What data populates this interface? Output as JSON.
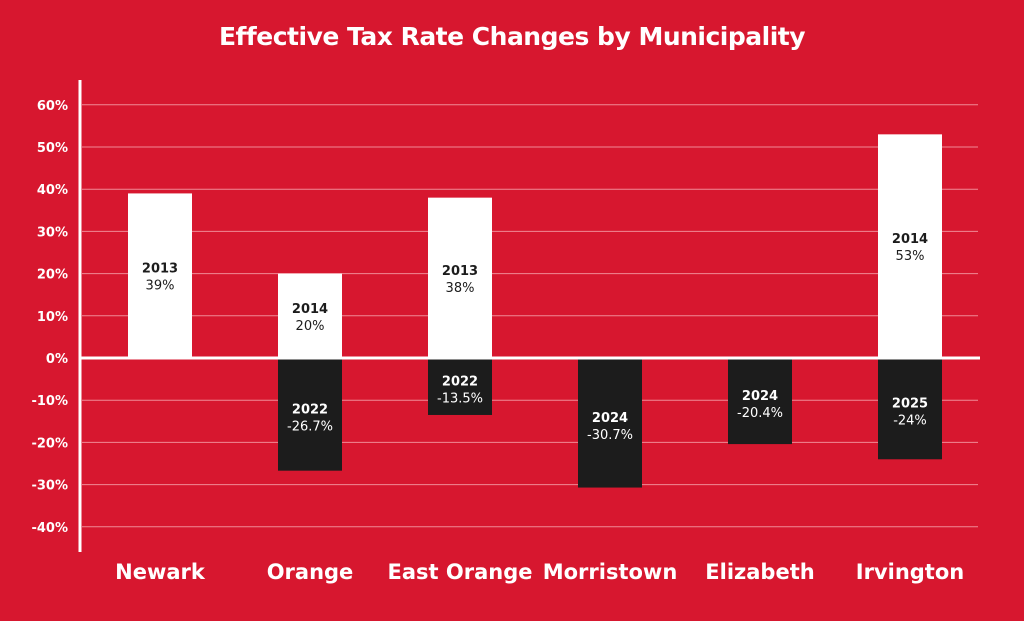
{
  "chart_data": {
    "type": "bar",
    "title": "Effective Tax Rate Changes by Municipality",
    "xlabel": "",
    "ylabel": "",
    "ylim": [
      -40,
      60
    ],
    "yticks": [
      "60%",
      "50%",
      "40%",
      "30%",
      "20%",
      "10%",
      "0%",
      "-10%",
      "-20%",
      "-30%",
      "-40%"
    ],
    "ytick_values": [
      60,
      50,
      40,
      30,
      20,
      10,
      0,
      -10,
      -20,
      -30,
      -40
    ],
    "grid": true,
    "categories": [
      "Newark",
      "Orange",
      "East Orange",
      "Morristown",
      "Elizabeth",
      "Irvington"
    ],
    "increases": [
      {
        "year": "2013",
        "value": 39,
        "label": "39%"
      },
      {
        "year": "2014",
        "value": 20,
        "label": "20%"
      },
      {
        "year": "2013",
        "value": 38,
        "label": "38%"
      },
      null,
      null,
      {
        "year": "2014",
        "value": 53,
        "label": "53%"
      }
    ],
    "decreases": [
      null,
      {
        "year": "2022",
        "value": -26.7,
        "label": "-26.7%"
      },
      {
        "year": "2022",
        "value": -13.5,
        "label": "-13.5%"
      },
      {
        "year": "2024",
        "value": -30.7,
        "label": "-30.7%"
      },
      {
        "year": "2024",
        "value": -20.4,
        "label": "-20.4%"
      },
      {
        "year": "2025",
        "value": -24,
        "label": "-24%"
      }
    ],
    "colors": {
      "background": "#d7172f",
      "increase": "#ffffff",
      "decrease": "#1c1c1c",
      "grid": "#f08a96"
    }
  }
}
